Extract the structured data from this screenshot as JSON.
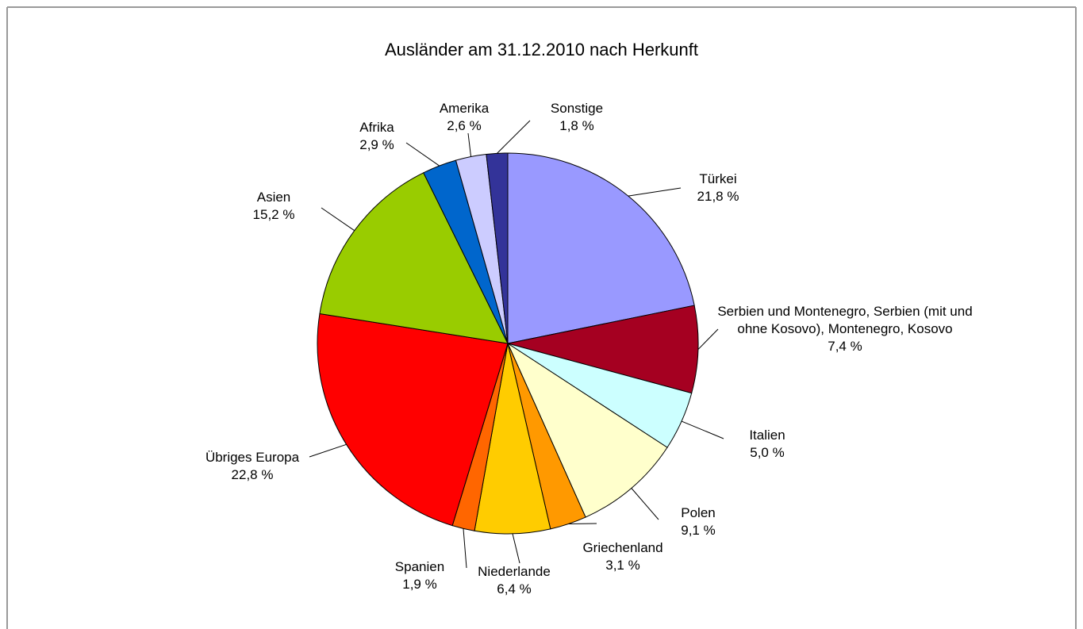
{
  "chart_data": {
    "type": "pie",
    "title": "Ausländer am 31.12.2010 nach Herkunft",
    "categories": [
      "Türkei",
      "Serbien und Montenegro, Serbien (mit und ohne Kosovo), Montenegro, Kosovo",
      "Italien",
      "Polen",
      "Griechenland",
      "Niederlande",
      "Spanien",
      "Übriges Europa",
      "Asien",
      "Afrika",
      "Amerika",
      "Sonstige"
    ],
    "values": [
      21.8,
      7.4,
      5.0,
      9.1,
      3.1,
      6.4,
      1.9,
      22.8,
      15.2,
      2.9,
      2.6,
      1.8
    ],
    "value_labels": [
      "21,8 %",
      "7,4 %",
      "5,0 %",
      "9,1 %",
      "3,1 %",
      "6,4 %",
      "1,9 %",
      "22,8 %",
      "15,2 %",
      "2,9 %",
      "2,6 %",
      "1,8 %"
    ],
    "colors": [
      "#9999ff",
      "#a50021",
      "#ccffff",
      "#ffffcc",
      "#ff9900",
      "#ffcc00",
      "#ff6600",
      "#ff0000",
      "#99cc00",
      "#0066cc",
      "#ccccff",
      "#333399"
    ]
  }
}
